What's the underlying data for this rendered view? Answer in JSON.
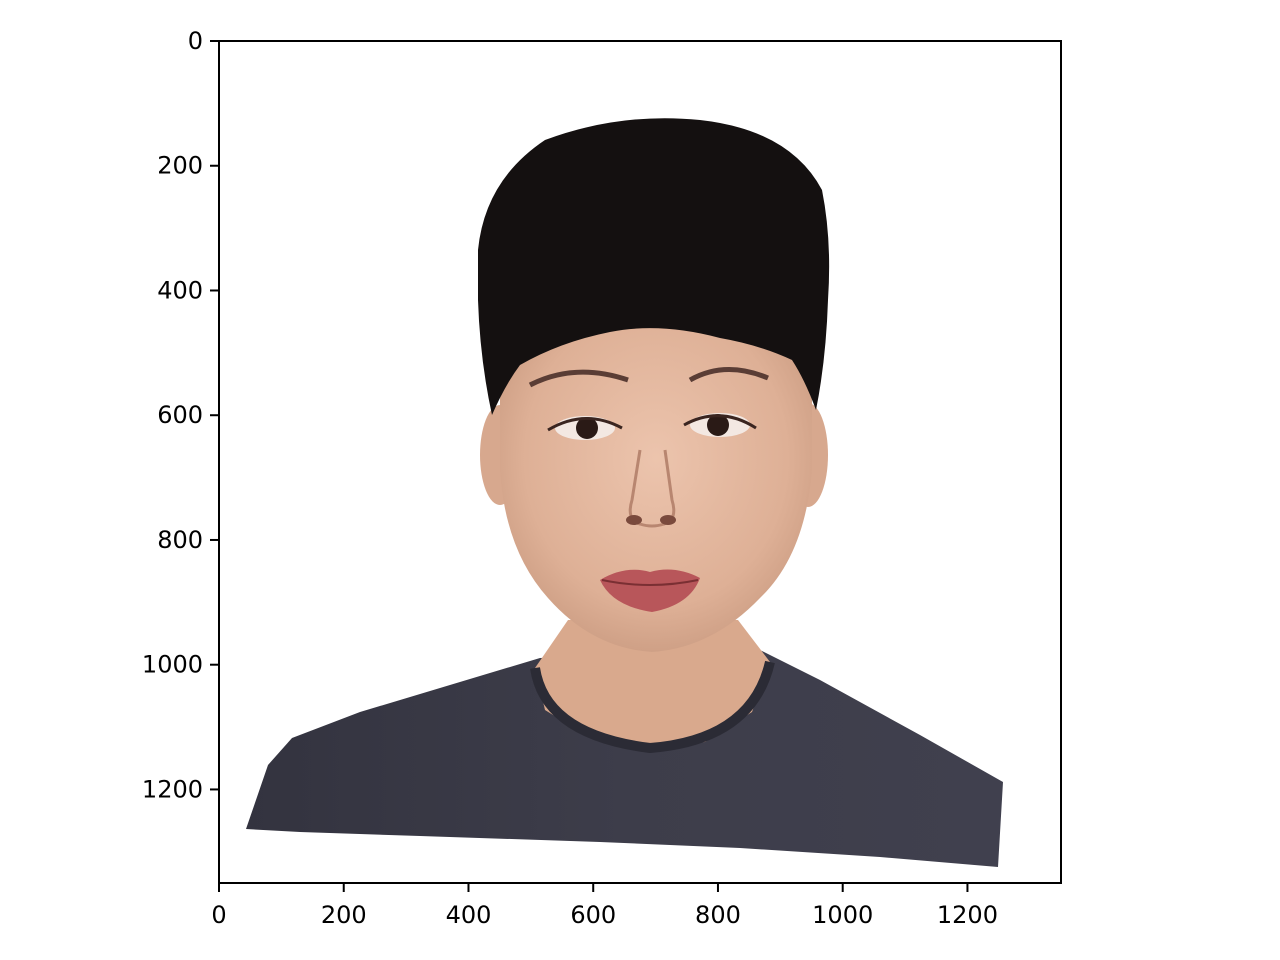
{
  "chart_data": {
    "type": "image",
    "title": "",
    "xlabel": "",
    "ylabel": "",
    "xlim": [
      0,
      1350
    ],
    "ylim": [
      1350,
      0
    ],
    "x_ticks": [
      0,
      200,
      400,
      600,
      800,
      1000,
      1200
    ],
    "y_ticks": [
      0,
      200,
      400,
      600,
      800,
      1000,
      1200
    ],
    "x_tick_labels": [
      "0",
      "200",
      "400",
      "600",
      "800",
      "1000",
      "1200"
    ],
    "y_tick_labels": [
      "0",
      "200",
      "400",
      "600",
      "800",
      "1000",
      "1200"
    ],
    "grid": false,
    "image_content": "portrait-photo",
    "colors": {
      "background": "#ffffff",
      "axes": "#000000",
      "hair": "#141010",
      "skin": "#e2b49b",
      "shirt": "#3a3a46",
      "lips": "#b8565a"
    }
  }
}
